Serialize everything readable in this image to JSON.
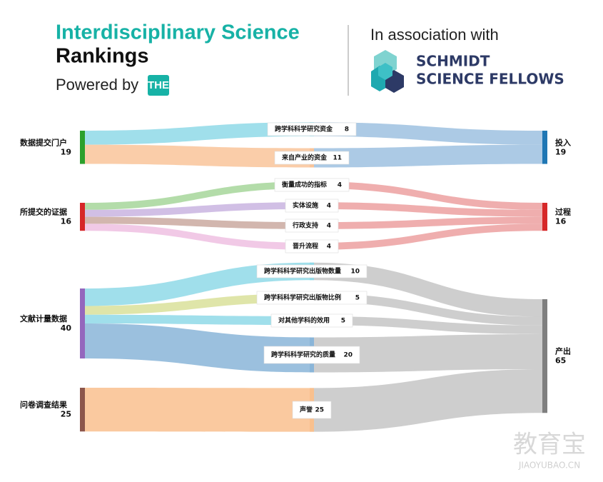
{
  "header": {
    "title_line1": "Interdisciplinary Science",
    "title_line2": "Rankings",
    "powered_by": "Powered by",
    "badge": "THE",
    "association": "In association with",
    "partner_line1": "SCHMIDT",
    "partner_line2": "SCIENCE FELLOWS"
  },
  "watermark": {
    "main": "教育宝",
    "sub": "JIAOYUBAO.CN"
  },
  "chart_data": {
    "type": "sankey",
    "sources": [
      {
        "name": "数据提交门户",
        "value": 19,
        "color": "#2ca02c",
        "flows": [
          {
            "name": "跨学科科学研究资金",
            "value": 8,
            "color": "#8fd9e8",
            "target": "投入"
          },
          {
            "name": "来自产业的资金",
            "value": 11,
            "color": "#f9c49a",
            "target": "投入"
          }
        ]
      },
      {
        "name": "所提交的证据",
        "value": 16,
        "color": "#d62728",
        "flows": [
          {
            "name": "衡量成功的指标",
            "value": 4,
            "color": "#a6d69a",
            "target": "过程"
          },
          {
            "name": "实体设施",
            "value": 4,
            "color": "#c9b4e0",
            "target": "过程"
          },
          {
            "name": "行政支持",
            "value": 4,
            "color": "#caa9a0",
            "target": "过程"
          },
          {
            "name": "晋升流程",
            "value": 4,
            "color": "#eebfe2",
            "target": "过程"
          }
        ]
      },
      {
        "name": "文献计量数据",
        "value": 40,
        "color": "#9467bd",
        "flows": [
          {
            "name": "跨学科科学研究出版物数量",
            "value": 10,
            "color": "#8fd9e8",
            "target": "产出"
          },
          {
            "name": "跨学科科学研究出版物比例",
            "value": 5,
            "color": "#d9e09a",
            "target": "产出"
          },
          {
            "name": "对其他学科的效用",
            "value": 5,
            "color": "#8fd9e8",
            "target": "产出"
          },
          {
            "name": "跨学科科学研究的质量",
            "value": 20,
            "color": "#8ab5d8",
            "target": "产出"
          }
        ]
      },
      {
        "name": "问卷调查结果",
        "value": 25,
        "color": "#8c564b",
        "flows": [
          {
            "name": "声誉",
            "value": 25,
            "color": "#f9c08e",
            "target": "产出"
          }
        ]
      }
    ],
    "targets": [
      {
        "name": "投入",
        "value": 19,
        "color": "#1f77b4",
        "link_color": "#9dc1e0"
      },
      {
        "name": "过程",
        "value": 16,
        "color": "#d62728",
        "link_color": "#eca0a0"
      },
      {
        "name": "产出",
        "value": 65,
        "color": "#7f7f7f",
        "link_color": "#c6c6c6"
      }
    ]
  }
}
